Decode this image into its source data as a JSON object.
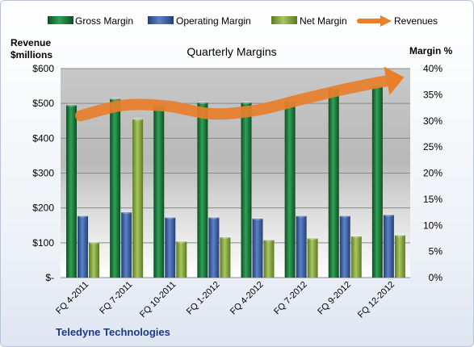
{
  "chart_data": {
    "type": "bar",
    "title": "Quarterly Margins",
    "company": "Teledyne Technologies",
    "categories": [
      "FQ 4-2011",
      "FQ 7-2011",
      "FQ 10-2011",
      "FQ 1-2012",
      "FQ 4-2012",
      "FQ 7-2012",
      "FQ 9-2012",
      "FQ 12-2012"
    ],
    "left_axis": {
      "label_line1": "Revenue",
      "label_line2": "$millions",
      "ylim": [
        0,
        600
      ],
      "ticks": [
        0,
        100,
        200,
        300,
        400,
        500,
        600
      ],
      "tick_labels": [
        "$-",
        "$100",
        "$200",
        "$300",
        "$400",
        "$500",
        "$600"
      ]
    },
    "right_axis": {
      "label": "Margin  %",
      "ylim": [
        0,
        40
      ],
      "ticks": [
        0,
        5,
        10,
        15,
        20,
        25,
        30,
        35,
        40
      ],
      "tick_labels": [
        "0%",
        "5%",
        "10%",
        "15%",
        "20%",
        "25%",
        "30%",
        "35%",
        "40%"
      ]
    },
    "series": [
      {
        "name": "Gross Margin",
        "axis": "right",
        "kind": "bar",
        "color": "#1f7a3c",
        "values": [
          33.0,
          34.2,
          33.0,
          33.5,
          33.5,
          33.8,
          36.2,
          36.7
        ]
      },
      {
        "name": "Operating Margin",
        "axis": "right",
        "kind": "bar",
        "color": "#3c62a8",
        "values": [
          11.8,
          12.5,
          11.5,
          11.5,
          11.3,
          11.8,
          11.8,
          12.0
        ]
      },
      {
        "name": "Net Margin",
        "axis": "right",
        "kind": "bar",
        "color": "#8cad45",
        "values": [
          6.7,
          30.3,
          6.9,
          7.7,
          7.2,
          7.5,
          7.9,
          8.1
        ]
      },
      {
        "name": "Revenues",
        "axis": "left",
        "kind": "line",
        "color": "#e87f2a",
        "values": [
          465,
          495,
          492,
          470,
          480,
          510,
          540,
          565
        ]
      }
    ],
    "grid": true,
    "legend_position": "top"
  }
}
